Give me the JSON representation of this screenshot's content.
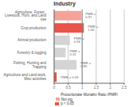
{
  "chart_data": {
    "type": "bar",
    "orientation": "horizontal",
    "title": "Industry",
    "xlabel": "Proportionate Mortality Ratio (PMR)",
    "categories": [
      "Agriculture, Forest., Livestock, Hunt. and Land use",
      "Crop production",
      "Animal production",
      "Forestry & logging",
      "Fishing, Hunting and Trapping",
      "Agriculture and Land work, Misc activities"
    ],
    "values": [
      0.97,
      1.06,
      0.56,
      0.41,
      0.8,
      0.09
    ],
    "value_labels": [
      "PMR = 0.97",
      "PMR = 1.06",
      "PMR = 0.56",
      "PMR = 0.41",
      "PMR = 0.80",
      "PMR = 0.09"
    ],
    "data_labels": true,
    "colors": [
      "#f4a39a",
      "#e8534a",
      "#d4d4d4",
      "#d4d4d4",
      "#d4d4d4",
      "#e8534a"
    ],
    "baseline": 1.0,
    "xlim": [
      0,
      2.5
    ],
    "xticks": [
      0,
      0.5,
      1,
      1.5,
      2,
      2.5
    ],
    "grid": true,
    "legend": "bottom",
    "legend_entries": [
      {
        "name": "Not sig.",
        "color": "#f4a39a"
      },
      {
        "name": "p < 0.05",
        "color": "#e8534a"
      }
    ]
  }
}
